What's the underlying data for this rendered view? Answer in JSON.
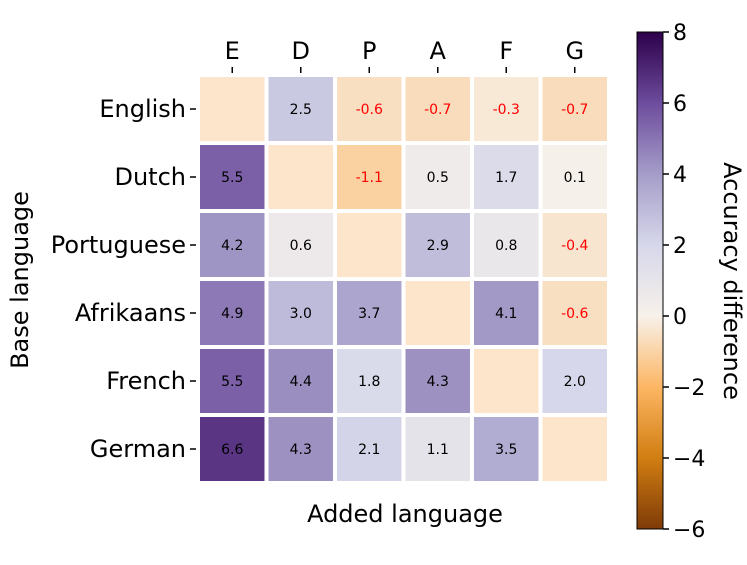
{
  "chart_data": {
    "type": "heatmap",
    "xlabel": "Added language",
    "ylabel": "Base language",
    "x_categories": [
      "E",
      "D",
      "P",
      "A",
      "F",
      "G"
    ],
    "y_categories": [
      "English",
      "Dutch",
      "Portuguese",
      "Afrikaans",
      "French",
      "German"
    ],
    "values": [
      [
        null,
        2.5,
        -0.6,
        -0.7,
        -0.3,
        -0.7
      ],
      [
        5.5,
        null,
        -1.1,
        0.5,
        1.7,
        0.1
      ],
      [
        4.2,
        0.6,
        null,
        2.9,
        0.8,
        -0.4
      ],
      [
        4.9,
        3.0,
        3.7,
        null,
        4.1,
        -0.6
      ],
      [
        5.5,
        4.4,
        1.8,
        4.3,
        null,
        2.0
      ],
      [
        6.6,
        4.3,
        2.1,
        1.1,
        3.5,
        null
      ]
    ],
    "diagonal_blank_fill": "#fde5cb",
    "negative_label_color": "#ff0000",
    "label_color": "#000000",
    "colorbar": {
      "label": "Accuracy difference",
      "range": [
        -6,
        8
      ],
      "ticks": [
        8,
        6,
        4,
        2,
        0,
        -2,
        -4,
        -6
      ],
      "tick_labels": [
        "8",
        "6",
        "4",
        "2",
        "0",
        "−2",
        "−4",
        "−6"
      ],
      "colormap": "PuOr",
      "colors": {
        "-6": "#7f3b08",
        "-4": "#d17e12",
        "-2": "#fdb663",
        "0": "#f7f1ea",
        "2": "#d6d7ea",
        "4": "#a59dc9",
        "6": "#6d4c9d",
        "8": "#2d004b"
      }
    }
  }
}
